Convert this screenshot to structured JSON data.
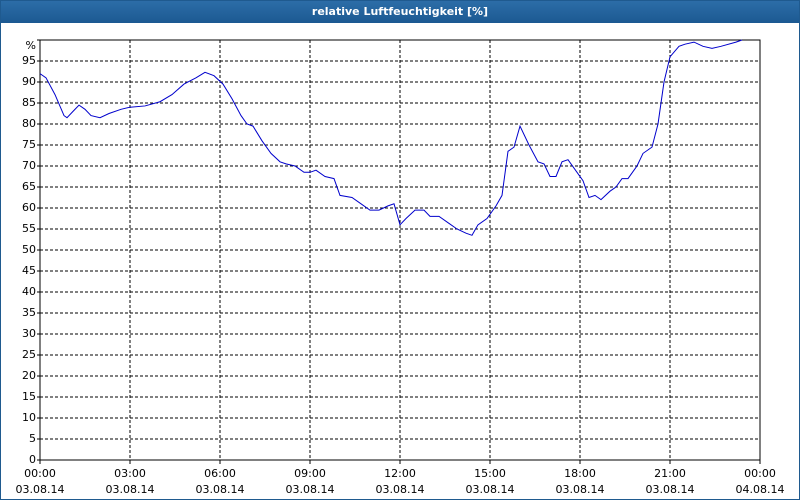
{
  "chart_data": {
    "type": "line",
    "title": "relative Luftfeuchtigkeit [%]",
    "x": [
      0,
      0.2,
      0.5,
      0.8,
      0.9,
      1.1,
      1.3,
      1.5,
      1.7,
      2.0,
      2.3,
      2.7,
      3.0,
      3.5,
      4.0,
      4.4,
      4.8,
      5.2,
      5.5,
      5.8,
      6.1,
      6.4,
      6.7,
      6.9,
      7.1,
      7.4,
      7.7,
      8.0,
      8.2,
      8.5,
      8.8,
      9.0,
      9.2,
      9.5,
      9.8,
      10.0,
      10.4,
      10.7,
      11.0,
      11.3,
      11.6,
      11.8,
      12.0,
      12.2,
      12.5,
      12.8,
      13.0,
      13.3,
      13.6,
      13.9,
      14.2,
      14.4,
      14.6,
      14.9,
      15.2,
      15.4,
      15.6,
      15.8,
      16.0,
      16.3,
      16.6,
      16.8,
      17.0,
      17.2,
      17.4,
      17.6,
      17.9,
      18.1,
      18.3,
      18.5,
      18.7,
      19.0,
      19.2,
      19.4,
      19.6,
      19.9,
      20.1,
      20.4,
      20.6,
      20.8,
      21.0,
      21.3,
      21.5,
      21.8,
      22.1,
      22.4,
      22.7,
      23.2,
      23.4
    ],
    "series": [
      {
        "name": "relative Luftfeuchtigkeit",
        "color": "#0000cc",
        "values": [
          92,
          91,
          87,
          82,
          81.5,
          83,
          84.5,
          83.5,
          82,
          81.5,
          82.5,
          83.5,
          84,
          84.3,
          85.3,
          87,
          89.5,
          91,
          92.3,
          91.5,
          89.5,
          86,
          82,
          80,
          79.5,
          76,
          73,
          71,
          70.5,
          70,
          68.5,
          68.5,
          69,
          67.5,
          67,
          63,
          62.5,
          61,
          59.5,
          59.5,
          60.5,
          61,
          56,
          57.5,
          59.5,
          59.5,
          58,
          58,
          56.5,
          55,
          54,
          53.5,
          56,
          57.5,
          60.5,
          63,
          73.5,
          74.5,
          79.5,
          75,
          71,
          70.5,
          67.5,
          67.5,
          71,
          71.5,
          68.5,
          66.5,
          62.5,
          63,
          62,
          64,
          65,
          67,
          67,
          70,
          73,
          74.5,
          80,
          90,
          96,
          98.5,
          99,
          99.5,
          98.5,
          98,
          98.5,
          99.5,
          100
        ]
      }
    ],
    "xlim": [
      0,
      24
    ],
    "xticks": [
      {
        "value": 0,
        "label": "00:00"
      },
      {
        "value": 3,
        "label": "03:00"
      },
      {
        "value": 6,
        "label": "06:00"
      },
      {
        "value": 9,
        "label": "09:00"
      },
      {
        "value": 12,
        "label": "12:00"
      },
      {
        "value": 15,
        "label": "15:00"
      },
      {
        "value": 18,
        "label": "18:00"
      },
      {
        "value": 21,
        "label": "21:00"
      },
      {
        "value": 24,
        "label": "00:00"
      }
    ],
    "xtick_dates": [
      "03.08.14",
      "03.08.14",
      "03.08.14",
      "03.08.14",
      "03.08.14",
      "03.08.14",
      "03.08.14",
      "03.08.14",
      "04.08.14"
    ],
    "ylim": [
      0,
      100
    ],
    "yticks": [
      0,
      5,
      10,
      15,
      20,
      25,
      30,
      35,
      40,
      45,
      50,
      55,
      60,
      65,
      70,
      75,
      80,
      85,
      90,
      95,
      {
        "value": 100,
        "label": "%"
      }
    ],
    "grid": true
  }
}
